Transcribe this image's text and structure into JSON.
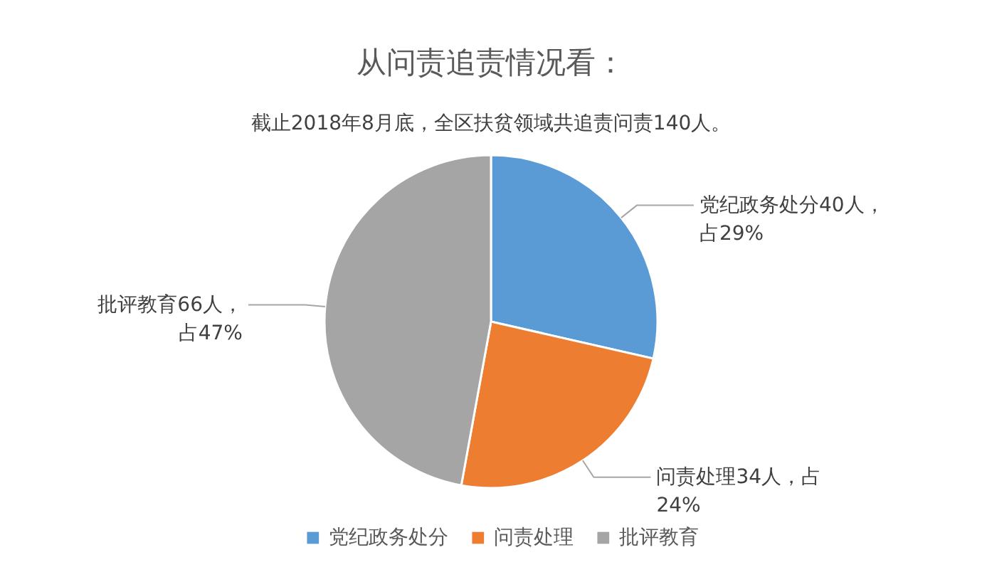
{
  "chart_data": {
    "type": "pie",
    "title": "从问责追责情况看：",
    "subtitle": "截止2018年8月底，全区扶贫领域共追责问责140人。",
    "categories": [
      "党纪政务处分",
      "问责处理",
      "批评教育"
    ],
    "values": [
      40,
      34,
      66
    ],
    "colors": [
      "#5b9bd5",
      "#ed7d31",
      "#a5a5a5"
    ],
    "value_labels": [
      "党纪政务处分40人，占29%",
      "问责处理34人，占24%",
      "批评教育66人，占47%"
    ],
    "legend": "bottom"
  }
}
